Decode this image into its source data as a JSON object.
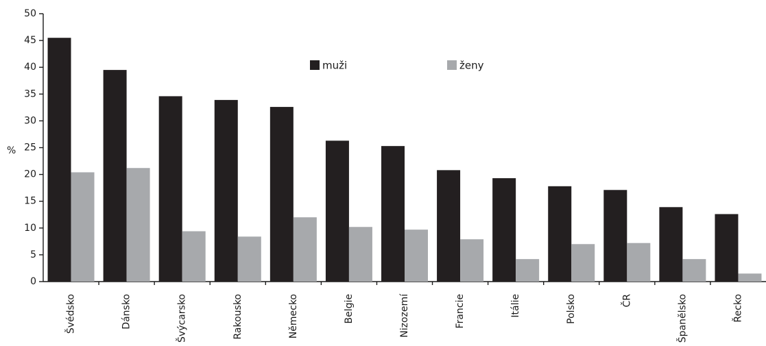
{
  "chart_data": {
    "type": "bar",
    "ylabel": "%",
    "ylim": [
      0,
      50
    ],
    "yticks": [
      0,
      5,
      10,
      15,
      20,
      25,
      30,
      35,
      40,
      45,
      50
    ],
    "categories": [
      "Švédsko",
      "Dánsko",
      "Švýcarsko",
      "Rakousko",
      "Německo",
      "Belgie",
      "Nizozemí",
      "Francie",
      "Itálie",
      "Polsko",
      "ČR",
      "Španělsko",
      "Řecko"
    ],
    "series": [
      {
        "name": "muži",
        "color": "#231f20",
        "values": [
          45.5,
          39.5,
          34.6,
          33.9,
          32.6,
          26.3,
          25.3,
          20.8,
          19.3,
          17.8,
          17.1,
          13.9,
          12.6
        ]
      },
      {
        "name": "ženy",
        "color": "#a7a9ac",
        "values": [
          20.4,
          21.2,
          9.4,
          8.4,
          12.0,
          10.2,
          9.7,
          7.9,
          4.2,
          7.0,
          7.2,
          4.2,
          1.5
        ]
      }
    ],
    "legend_position": "top-center",
    "grid": false
  }
}
